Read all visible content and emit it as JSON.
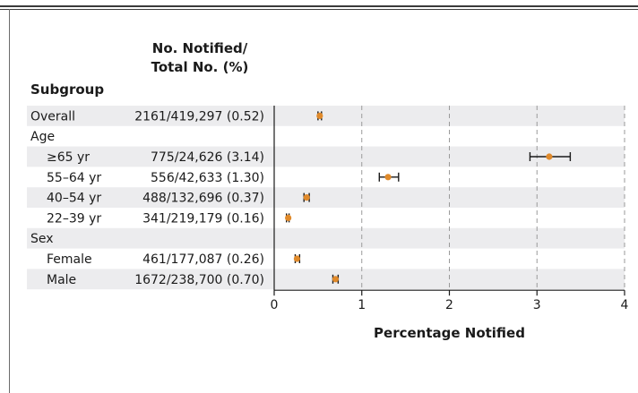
{
  "header": {
    "subgroup_label": "Subgroup",
    "count_label_line1": "No. Notified/",
    "count_label_line2": "Total No. (%)"
  },
  "colors": {
    "band": "#ececee",
    "marker": "#e08a2b",
    "errorbar": "#1a1a1a",
    "grid": "#9a9a9a",
    "axis": "#1a1a1a",
    "text": "#1a1a1a"
  },
  "chart_data": {
    "type": "forest",
    "xlabel": "Percentage Notified",
    "xlim": [
      0,
      4
    ],
    "xticks": [
      0,
      1,
      2,
      3,
      4
    ],
    "grid": "vertical dashed at 1, 2, 3, 4",
    "rows": [
      {
        "label": "Overall",
        "indent": 0,
        "count": "2161/419,297 (0.52)",
        "est": 0.52,
        "lo": 0.5,
        "hi": 0.54
      },
      {
        "label": "Age",
        "indent": 0,
        "header": true
      },
      {
        "label": "≥65 yr",
        "indent": 1,
        "count": "775/24,626 (3.14)",
        "est": 3.14,
        "lo": 2.92,
        "hi": 3.38
      },
      {
        "label": "55–64 yr",
        "indent": 1,
        "count": "556/42,633 (1.30)",
        "est": 1.3,
        "lo": 1.2,
        "hi": 1.42
      },
      {
        "label": "40–54 yr",
        "indent": 1,
        "count": "488/132,696 (0.37)",
        "est": 0.37,
        "lo": 0.34,
        "hi": 0.4
      },
      {
        "label": "22–39 yr",
        "indent": 1,
        "count": "341/219,179 (0.16)",
        "est": 0.16,
        "lo": 0.14,
        "hi": 0.17
      },
      {
        "label": "Sex",
        "indent": 0,
        "header": true
      },
      {
        "label": "Female",
        "indent": 1,
        "count": "461/177,087 (0.26)",
        "est": 0.26,
        "lo": 0.24,
        "hi": 0.29
      },
      {
        "label": "Male",
        "indent": 1,
        "count": "1672/238,700 (0.70)",
        "est": 0.7,
        "lo": 0.67,
        "hi": 0.73
      }
    ]
  }
}
